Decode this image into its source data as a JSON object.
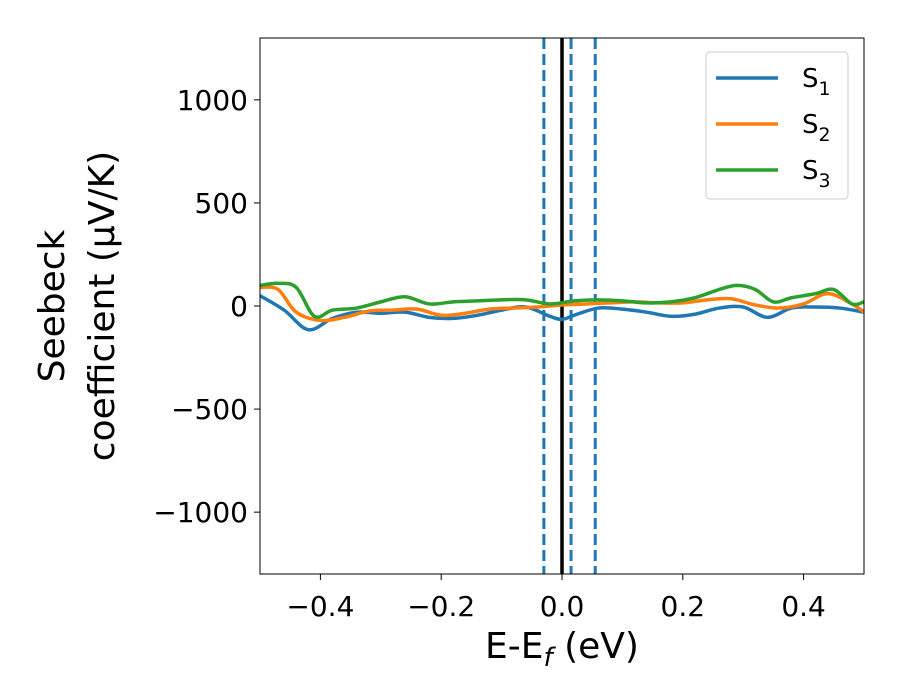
{
  "chart_data": {
    "type": "line",
    "xlabel": "E-E",
    "xlabel_sub": "f",
    "xlabel_unit": " (eV)",
    "ylabel_line1": "Seebeck",
    "ylabel_line2": "coefficient  (μV/K)",
    "xlim": [
      -0.5,
      0.5
    ],
    "ylim": [
      -1300,
      1300
    ],
    "xticks": [
      -0.4,
      -0.2,
      0.0,
      0.2,
      0.4
    ],
    "xtick_labels": [
      "−0.4",
      "−0.2",
      "0.0",
      "0.2",
      "0.4"
    ],
    "yticks": [
      1000,
      500,
      0,
      -500,
      -1000
    ],
    "ytick_labels": [
      "1000",
      "500",
      "0",
      "−500",
      "−1000"
    ],
    "legend_position": "top-right",
    "vlines": [
      {
        "x": 0.0,
        "style": "solid",
        "color": "#000000"
      },
      {
        "x": -0.03,
        "style": "dashed",
        "color": "#1f77b4"
      },
      {
        "x": 0.015,
        "style": "dashed",
        "color": "#1f77b4"
      },
      {
        "x": 0.055,
        "style": "dashed",
        "color": "#1f77b4"
      }
    ],
    "series": [
      {
        "name": "S",
        "sub": "1",
        "color": "#1f77b4",
        "x": [
          -0.5,
          -0.46,
          -0.42,
          -0.38,
          -0.34,
          -0.3,
          -0.26,
          -0.22,
          -0.18,
          -0.14,
          -0.1,
          -0.06,
          -0.02,
          0.0,
          0.02,
          0.06,
          0.1,
          0.14,
          0.18,
          0.22,
          0.26,
          0.3,
          0.34,
          0.38,
          0.42,
          0.46,
          0.5
        ],
        "y": [
          50,
          -20,
          -115,
          -60,
          -30,
          -35,
          -30,
          -55,
          -60,
          -45,
          -20,
          -5,
          -50,
          -65,
          -45,
          -10,
          -15,
          -30,
          -50,
          -40,
          -10,
          -5,
          -55,
          -10,
          -5,
          -10,
          -30
        ]
      },
      {
        "name": "S",
        "sub": "2",
        "color": "#ff7f0e",
        "x": [
          -0.5,
          -0.47,
          -0.44,
          -0.4,
          -0.36,
          -0.32,
          -0.28,
          -0.24,
          -0.2,
          -0.16,
          -0.12,
          -0.08,
          -0.04,
          0.0,
          0.04,
          0.08,
          0.12,
          0.16,
          0.2,
          0.24,
          0.28,
          0.32,
          0.36,
          0.4,
          0.44,
          0.48,
          0.5
        ],
        "y": [
          90,
          80,
          -30,
          -70,
          -55,
          -25,
          -20,
          -15,
          -45,
          -35,
          -15,
          -10,
          -5,
          5,
          10,
          15,
          20,
          15,
          15,
          30,
          35,
          5,
          -10,
          10,
          60,
          10,
          -30
        ]
      },
      {
        "name": "S",
        "sub": "3",
        "color": "#2ca02c",
        "x": [
          -0.5,
          -0.47,
          -0.44,
          -0.41,
          -0.38,
          -0.34,
          -0.3,
          -0.26,
          -0.22,
          -0.18,
          -0.14,
          -0.1,
          -0.06,
          -0.02,
          0.02,
          0.06,
          0.1,
          0.14,
          0.18,
          0.22,
          0.26,
          0.29,
          0.32,
          0.35,
          0.38,
          0.42,
          0.45,
          0.48,
          0.5
        ],
        "y": [
          100,
          110,
          90,
          -50,
          -20,
          -10,
          20,
          45,
          10,
          20,
          25,
          30,
          30,
          10,
          25,
          30,
          25,
          15,
          20,
          40,
          80,
          100,
          80,
          20,
          40,
          60,
          80,
          10,
          20
        ]
      }
    ]
  }
}
